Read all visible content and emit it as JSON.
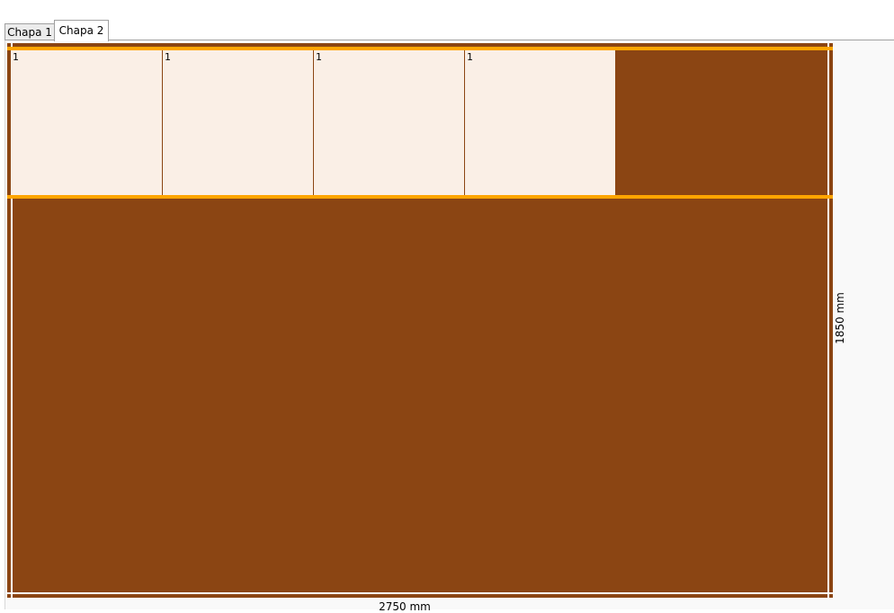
{
  "tabs": [
    {
      "label": "Chapa 1",
      "active": false
    },
    {
      "label": "Chapa 2",
      "active": true
    }
  ],
  "sheet": {
    "width_label": "2750 mm",
    "height_label": "1850 mm"
  },
  "pieces": [
    {
      "label": "1"
    },
    {
      "label": "1"
    },
    {
      "label": "1"
    },
    {
      "label": "1"
    }
  ],
  "colors": {
    "sheet": "#8b4513",
    "piece": "#faefe6",
    "cut_line": "#ffa500",
    "edge_line": "#ffffff"
  }
}
